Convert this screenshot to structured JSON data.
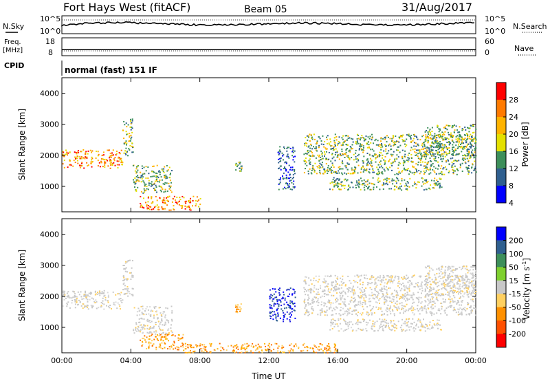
{
  "header": {
    "station": "Fort Hays West (fitACF)",
    "beam": "Beam 05",
    "date": "31/Aug/2017"
  },
  "top_panels": {
    "nsky_label": "N.Sky",
    "nsearch_label": "N.Search",
    "freq_label": "Freq.",
    "freq_unit": "[MHz]",
    "nave_label": "Nave",
    "cpid_label": "CPID",
    "cpid_text": "normal (fast) 151 IF",
    "noise_ticks": [
      "10^5",
      "10^0"
    ],
    "freq_ticks": [
      "18",
      "8"
    ],
    "nave_ticks": [
      "60",
      "0"
    ]
  },
  "chart_data": [
    {
      "type": "heatmap",
      "name": "power",
      "ylabel": "Slant Range [km]",
      "ylim": [
        180,
        4500
      ],
      "yticks": [
        1000,
        2000,
        3000,
        4000
      ],
      "xlim": [
        0,
        24
      ],
      "colorbar": {
        "label": "Power [dB]",
        "ticks": [
          "28",
          "24",
          "20",
          "16",
          "12",
          "8",
          "4"
        ],
        "colors": [
          "#ff0000",
          "#ff7a00",
          "#ffb300",
          "#e4e000",
          "#3d8f5a",
          "#2f5f8f",
          "#0000ff"
        ]
      },
      "echo_regions": [
        {
          "t0": 0.0,
          "t1": 3.5,
          "r0": 1600,
          "r1": 2200,
          "level": "high"
        },
        {
          "t0": 3.5,
          "t1": 4.1,
          "r0": 2000,
          "r1": 3200,
          "level": "mid"
        },
        {
          "t0": 4.1,
          "t1": 6.4,
          "r0": 800,
          "r1": 1700,
          "level": "mid"
        },
        {
          "t0": 4.5,
          "t1": 8.0,
          "r0": 250,
          "r1": 700,
          "level": "high"
        },
        {
          "t0": 10.0,
          "t1": 10.4,
          "r0": 1500,
          "r1": 1800,
          "level": "mid"
        },
        {
          "t0": 12.5,
          "t1": 13.5,
          "r0": 900,
          "r1": 2300,
          "level": "low"
        },
        {
          "t0": 14.0,
          "t1": 24.0,
          "r0": 1400,
          "r1": 2700,
          "level": "mid"
        },
        {
          "t0": 15.5,
          "t1": 22.0,
          "r0": 900,
          "r1": 1300,
          "level": "mid"
        },
        {
          "t0": 21.0,
          "t1": 24.0,
          "r0": 2000,
          "r1": 3000,
          "level": "mid"
        }
      ]
    },
    {
      "type": "heatmap",
      "name": "velocity",
      "ylabel": "Slant Range [km]",
      "xlabel": "Time UT",
      "ylim": [
        180,
        4500
      ],
      "yticks": [
        1000,
        2000,
        3000,
        4000
      ],
      "xlim": [
        0,
        24
      ],
      "xticks": [
        "00:00",
        "04:00",
        "08:00",
        "12:00",
        "16:00",
        "20:00",
        "00:00"
      ],
      "colorbar": {
        "label": "Velocity [m s",
        "label_sup": "-1",
        "label_end": "]",
        "ticks": [
          "200",
          "100",
          "50",
          "15",
          "-15",
          "-50",
          "-100",
          "-200"
        ],
        "colors": [
          "#0000ff",
          "#2f5f8f",
          "#3d8f5a",
          "#7fd02f",
          "#c8c8c8",
          "#ffd060",
          "#ff9000",
          "#ff5000",
          "#ff0000"
        ]
      },
      "echo_regions": [
        {
          "t0": 0.0,
          "t1": 3.5,
          "r0": 1600,
          "r1": 2200,
          "level": "gray"
        },
        {
          "t0": 3.5,
          "t1": 4.1,
          "r0": 2000,
          "r1": 3200,
          "level": "gray"
        },
        {
          "t0": 4.1,
          "t1": 6.4,
          "r0": 800,
          "r1": 1700,
          "level": "gray"
        },
        {
          "t0": 4.5,
          "t1": 7.0,
          "r0": 300,
          "r1": 800,
          "level": "orange"
        },
        {
          "t0": 7.0,
          "t1": 16.0,
          "r0": 200,
          "r1": 500,
          "level": "orange"
        },
        {
          "t0": 10.0,
          "t1": 10.4,
          "r0": 1500,
          "r1": 1800,
          "level": "yellow"
        },
        {
          "t0": 12.0,
          "t1": 13.5,
          "r0": 1200,
          "r1": 2300,
          "level": "blue"
        },
        {
          "t0": 14.0,
          "t1": 24.0,
          "r0": 1400,
          "r1": 2700,
          "level": "gray"
        },
        {
          "t0": 15.5,
          "t1": 22.0,
          "r0": 900,
          "r1": 1300,
          "level": "gray"
        },
        {
          "t0": 21.0,
          "t1": 24.0,
          "r0": 2000,
          "r1": 3000,
          "level": "gray"
        }
      ]
    }
  ]
}
